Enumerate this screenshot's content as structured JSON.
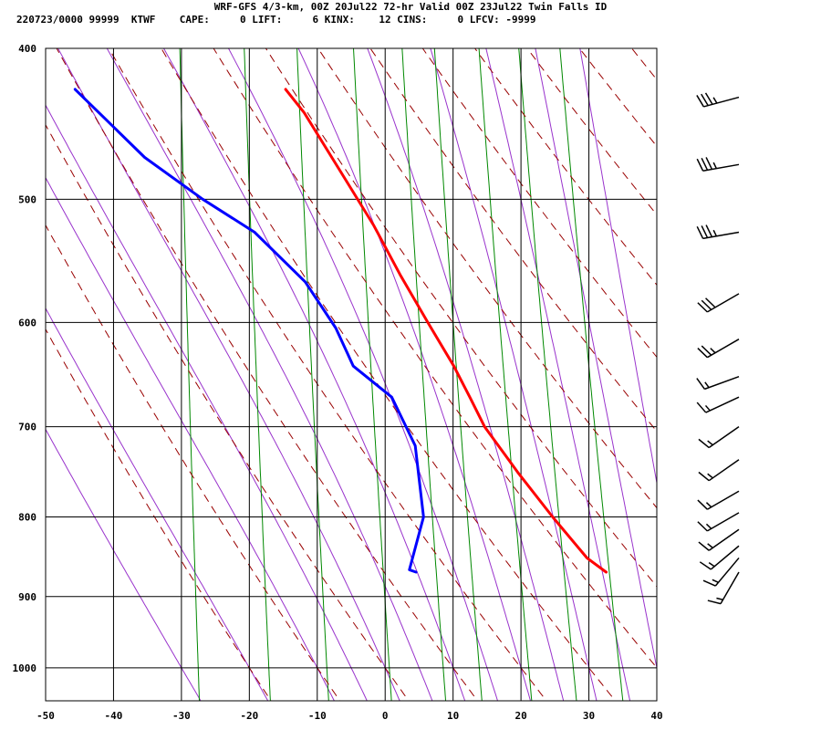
{
  "header": {
    "title": "WRF-GFS 4/3-km, 00Z 20Jul22 72-hr Valid 00Z 23Jul22 Twin Falls ID",
    "stats": "220723/0000 99999  KTWF    CAPE:     0 LIFT:     6 KINX:    12 CINS:     0 LFCV: -9999"
  },
  "chart_data": {
    "type": "line",
    "title": "WRF-GFS 4/3-km, 00Z 20Jul22 72-hr Valid 00Z 23Jul22 Twin Falls ID",
    "xlabel": "",
    "ylabel": "",
    "xlim": [
      -50,
      40
    ],
    "ylim": [
      1050,
      400
    ],
    "y_scale": "log",
    "skew_per_decade_log10p": 127,
    "x_ticks": [
      -50,
      -40,
      -30,
      -20,
      -10,
      0,
      10,
      20,
      30,
      40
    ],
    "y_ticks": [
      400,
      500,
      600,
      700,
      800,
      900,
      1000
    ],
    "grid": true,
    "colors": {
      "temperature": "#ff0000",
      "dewpoint": "#0000ff",
      "dry_adiabat": "#990000",
      "moist_adiabat": "#9933cc",
      "mixing_ratio": "#008800",
      "wind_barb": "#000000"
    },
    "series": [
      {
        "name": "",
        "color": "#ff0000",
        "points": [
          {
            "p": 868,
            "t": 31.5
          },
          {
            "p": 850,
            "t": 28.5
          },
          {
            "p": 800,
            "t": 23.0
          },
          {
            "p": 750,
            "t": 17.5
          },
          {
            "p": 700,
            "t": 12.0
          },
          {
            "p": 670,
            "t": 9.5
          },
          {
            "p": 640,
            "t": 6.8
          },
          {
            "p": 600,
            "t": 2.5
          },
          {
            "p": 560,
            "t": -2.0
          },
          {
            "p": 520,
            "t": -6.5
          },
          {
            "p": 480,
            "t": -12.0
          },
          {
            "p": 440,
            "t": -18.0
          },
          {
            "p": 425,
            "t": -21.0
          }
        ]
      },
      {
        "name": "",
        "color": "#0000ff",
        "points": [
          {
            "p": 868,
            "t": 3.5
          },
          {
            "p": 865,
            "t": 2.5
          },
          {
            "p": 800,
            "t": 4.0
          },
          {
            "p": 720,
            "t": 2.0
          },
          {
            "p": 670,
            "t": -2.0
          },
          {
            "p": 640,
            "t": -8.0
          },
          {
            "p": 605,
            "t": -11.0
          },
          {
            "p": 565,
            "t": -16.0
          },
          {
            "p": 525,
            "t": -24.0
          },
          {
            "p": 500,
            "t": -32.0
          },
          {
            "p": 470,
            "t": -41.0
          },
          {
            "p": 425,
            "t": -52.0
          }
        ]
      }
    ],
    "dry_adiabats_theta_c": [
      -20,
      -10,
      0,
      10,
      20,
      30,
      40,
      50,
      60,
      70,
      80,
      90,
      100,
      110,
      120,
      130
    ],
    "moist_adiabats_theta_w_c": [
      -30,
      -20,
      -10,
      -5,
      0,
      5,
      10,
      15,
      20,
      25,
      30,
      35,
      40,
      45
    ],
    "mixing_ratio_lines_gkg": [
      0.4,
      1,
      2,
      4,
      7,
      10,
      16,
      24,
      36
    ],
    "wind_barbs": [
      {
        "p": 868,
        "dir_deg": 210,
        "speed_kt": 15
      },
      {
        "p": 850,
        "dir_deg": 220,
        "speed_kt": 15
      },
      {
        "p": 835,
        "dir_deg": 230,
        "speed_kt": 15
      },
      {
        "p": 815,
        "dir_deg": 235,
        "speed_kt": 15
      },
      {
        "p": 795,
        "dir_deg": 240,
        "speed_kt": 15
      },
      {
        "p": 770,
        "dir_deg": 240,
        "speed_kt": 15
      },
      {
        "p": 735,
        "dir_deg": 235,
        "speed_kt": 15
      },
      {
        "p": 700,
        "dir_deg": 235,
        "speed_kt": 15
      },
      {
        "p": 670,
        "dir_deg": 245,
        "speed_kt": 15
      },
      {
        "p": 650,
        "dir_deg": 250,
        "speed_kt": 15
      },
      {
        "p": 615,
        "dir_deg": 240,
        "speed_kt": 25
      },
      {
        "p": 575,
        "dir_deg": 240,
        "speed_kt": 30
      },
      {
        "p": 525,
        "dir_deg": 260,
        "speed_kt": 35
      },
      {
        "p": 475,
        "dir_deg": 260,
        "speed_kt": 35
      },
      {
        "p": 430,
        "dir_deg": 255,
        "speed_kt": 35
      }
    ]
  }
}
